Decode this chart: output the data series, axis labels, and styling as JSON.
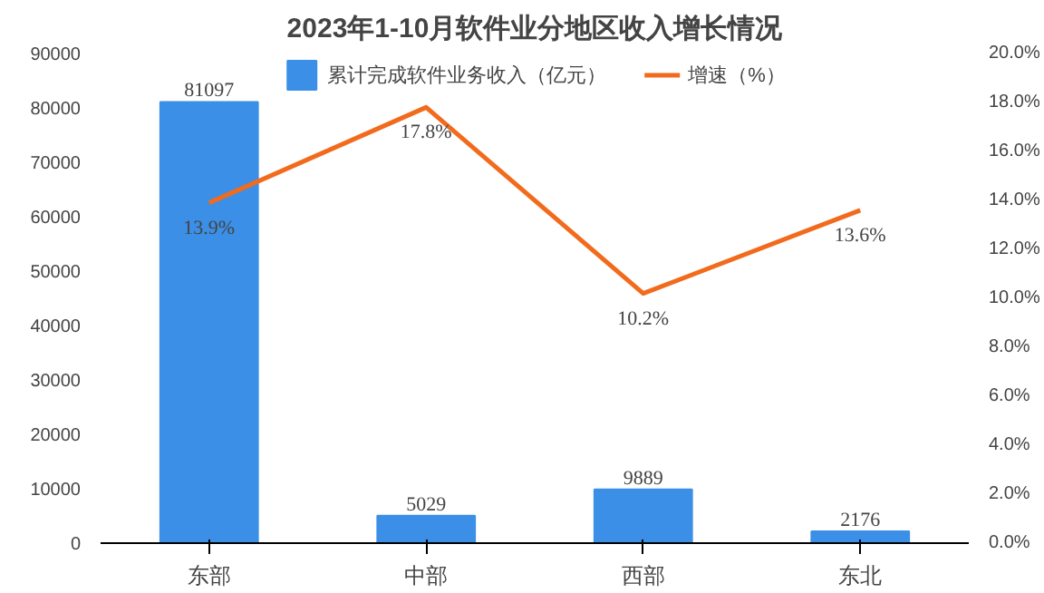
{
  "chart_data": {
    "type": "bar",
    "title": "2023年1-10月软件业分地区收入增长情况",
    "categories": [
      "东部",
      "中部",
      "西部",
      "东北"
    ],
    "series": [
      {
        "name": "累计完成软件业务收入（亿元）",
        "color": "#3b8fe6",
        "values": [
          81097,
          5029,
          9889,
          2176
        ]
      },
      {
        "name": "增速（%）",
        "type": "line",
        "axis": "y2",
        "color": "#f26b1d",
        "values": [
          13.9,
          17.8,
          10.2,
          13.6
        ],
        "value_labels": [
          "13.9%",
          "17.8%",
          "10.2%",
          "13.6%"
        ]
      }
    ],
    "ylim": [
      0,
      90000
    ],
    "yticks": [
      0,
      10000,
      20000,
      30000,
      40000,
      50000,
      60000,
      70000,
      80000,
      90000
    ],
    "y2lim": [
      0,
      20
    ],
    "y2ticks": [
      {
        "value": 0,
        "label": "0.0%"
      },
      {
        "value": 2,
        "label": "2.0%"
      },
      {
        "value": 4,
        "label": "4.0%"
      },
      {
        "value": 6,
        "label": "6.0%"
      },
      {
        "value": 8,
        "label": "8.0%"
      },
      {
        "value": 10,
        "label": "10.0%"
      },
      {
        "value": 12,
        "label": "12.0%"
      },
      {
        "value": 14,
        "label": "14.0%"
      },
      {
        "value": 16,
        "label": "16.0%"
      },
      {
        "value": 18,
        "label": "18.0%"
      },
      {
        "value": 20,
        "label": "20.0%"
      }
    ],
    "data_labels": true,
    "legend": "top",
    "grid": false
  }
}
